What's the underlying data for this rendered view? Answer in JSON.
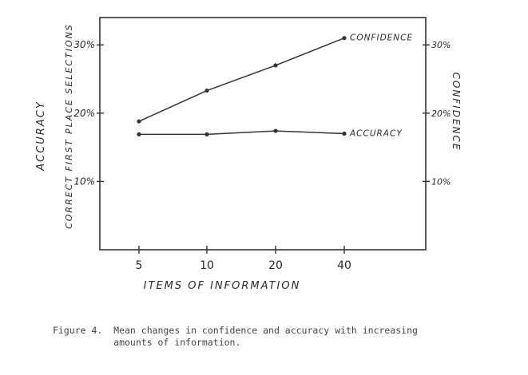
{
  "chart_data": {
    "type": "line",
    "categories": [
      "5",
      "10",
      "20",
      "40"
    ],
    "series": [
      {
        "name": "CONFIDENCE",
        "values": [
          18.8,
          23.3,
          27.0,
          31.0
        ],
        "axis": "right"
      },
      {
        "name": "ACCURACY",
        "values": [
          16.9,
          16.9,
          17.4,
          17.0
        ],
        "axis": "left"
      }
    ],
    "xlabel": "ITEMS OF INFORMATION",
    "ylabel_left": "ACCURACY",
    "ylabel_left_sub": "CORRECT FIRST PLACE SELECTIONS",
    "ylabel_right": "CONFIDENCE",
    "ylim": [
      0,
      34
    ],
    "left_ticks": [
      {
        "value": 10,
        "label": "10%"
      },
      {
        "value": 20,
        "label": "20%"
      },
      {
        "value": 30,
        "label": "30%"
      }
    ],
    "right_ticks": [
      {
        "value": 10,
        "label": "10%"
      },
      {
        "value": 20,
        "label": "20%"
      },
      {
        "value": 30,
        "label": "30%"
      }
    ],
    "grid": false,
    "legend": "inline labels at line ends",
    "line_color": "#333333"
  },
  "caption": {
    "text": "Figure 4.  Mean changes in confidence and accuracy with increasing\n           amounts of information."
  }
}
